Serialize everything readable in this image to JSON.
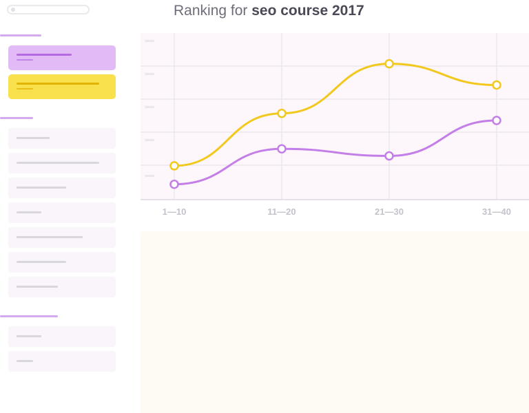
{
  "search": {
    "icon": "search-icon"
  },
  "header": {
    "title_prefix": "Ranking for ",
    "title_keyword": "seo course 2017"
  },
  "sidebar": {
    "active_items": [
      {
        "name": "active-item-purple",
        "color": "#e1baf6"
      },
      {
        "name": "active-item-yellow",
        "color": "#f9e04d"
      }
    ],
    "list_items_count": 7,
    "secondary_items_count": 2
  },
  "chart_data": {
    "type": "line",
    "categories": [
      "1—10",
      "11—20",
      "21—30",
      "31—40"
    ],
    "series": [
      {
        "color": "#f2c81d",
        "values": [
          0.18,
          0.55,
          0.9,
          0.75
        ]
      },
      {
        "color": "#c47ee8",
        "values": [
          0.05,
          0.3,
          0.25,
          0.5
        ]
      }
    ],
    "ylim": [
      0,
      1
    ],
    "grid": true
  }
}
